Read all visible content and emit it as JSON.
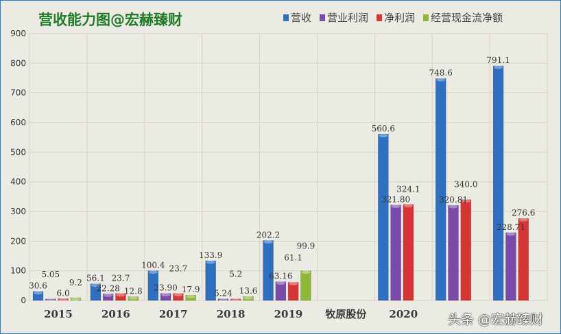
{
  "chart_data": {
    "type": "bar",
    "title": "营收能力图@宏赫臻财",
    "categories": [
      "2015",
      "2016",
      "2017",
      "2018",
      "2019",
      "牧原股份",
      "2020",
      "",
      ""
    ],
    "series": [
      {
        "name": "营收",
        "color": "#2f6fc0",
        "values": [
          30.6,
          56.1,
          100.4,
          133.9,
          202.2,
          null,
          560.6,
          748.6,
          791.1
        ],
        "labels": [
          "30.6",
          "56.1",
          "100.4",
          "133.9",
          "202.2",
          null,
          "560.6",
          "748.6",
          "791.1"
        ]
      },
      {
        "name": "营业利润",
        "color": "#7a4aa8",
        "values": [
          5.05,
          22.28,
          23.9,
          5.24,
          63.16,
          null,
          321.8,
          320.81,
          228.71
        ],
        "labels": [
          "5.05",
          "22.28",
          "23.90",
          "5.24",
          "63.16",
          null,
          "321.80",
          "320.81",
          "228.71"
        ]
      },
      {
        "name": "净利润",
        "color": "#d63535",
        "values": [
          6.0,
          23.7,
          23.7,
          5.2,
          61.1,
          null,
          324.1,
          340.0,
          276.6
        ],
        "labels": [
          "6.0",
          "23.7",
          "23.7",
          "5.2",
          "61.1",
          null,
          "324.1",
          "340.0",
          "276.6"
        ]
      },
      {
        "name": "经营现金流净额",
        "color": "#8db83a",
        "values": [
          9.2,
          12.8,
          17.9,
          13.6,
          99.9,
          null,
          null,
          null,
          null
        ],
        "labels": [
          "9.2",
          "12.8",
          "17.9",
          "13.6",
          "99.9",
          null,
          null,
          null,
          null
        ]
      }
    ],
    "ylim": [
      0,
      900
    ],
    "yticks": [
      "0",
      "100",
      "200",
      "300",
      "400",
      "500",
      "600",
      "700",
      "800",
      "900"
    ],
    "grid": true,
    "legend": "top-right"
  },
  "watermark": "头条 @宏赫臻财"
}
